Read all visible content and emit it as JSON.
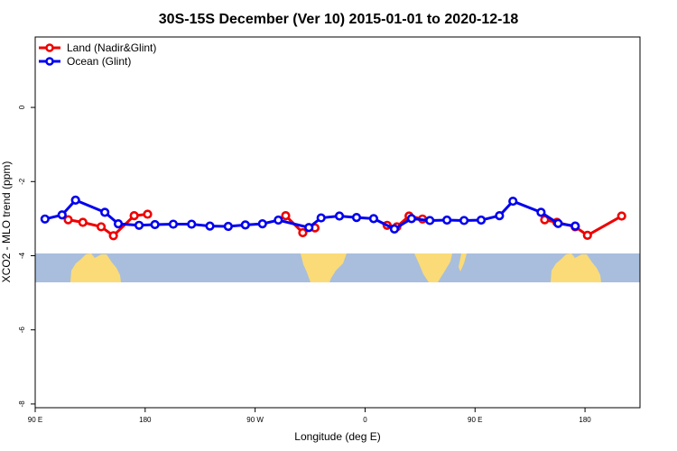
{
  "chart_data": {
    "type": "line",
    "title": "30S-15S December (Ver 10)   2015-01-01 to 2020-12-18",
    "xlabel": "Longitude (deg E)",
    "ylabel": "XCO2 - MLO trend (ppm)",
    "xlim": [
      90,
      585
    ],
    "ylim": [
      -8.1,
      1.9
    ],
    "x_ticks": [
      {
        "value": 90,
        "label": "90 E"
      },
      {
        "value": 180,
        "label": "180"
      },
      {
        "value": 270,
        "label": "90 W"
      },
      {
        "value": 360,
        "label": "0"
      },
      {
        "value": 450,
        "label": "90 E"
      },
      {
        "value": 540,
        "label": "180"
      }
    ],
    "y_ticks": [
      {
        "value": 0,
        "label": "0"
      },
      {
        "value": -2,
        "label": "-2"
      },
      {
        "value": -4,
        "label": "-4"
      },
      {
        "value": -6,
        "label": "-6"
      },
      {
        "value": -8,
        "label": "-8"
      }
    ],
    "legend": {
      "position": "top-left"
    },
    "series": [
      {
        "name": "Land (Nadir&Glint)",
        "color": "#ee0000",
        "segments": [
          [
            [
              117,
              -3.03
            ],
            [
              129,
              -3.1
            ],
            [
              144,
              -3.22
            ],
            [
              154,
              -3.46
            ],
            [
              171,
              -2.92
            ],
            [
              182,
              -2.88
            ]
          ],
          [
            [
              295,
              -2.92
            ],
            [
              309,
              -3.38
            ],
            [
              319,
              -3.25
            ]
          ],
          [
            [
              378,
              -3.18
            ],
            [
              386,
              -3.22
            ],
            [
              396,
              -2.93
            ],
            [
              407,
              -3.01
            ]
          ],
          [
            [
              507,
              -3.03
            ],
            [
              517,
              -3.1
            ],
            [
              532,
              -3.22
            ],
            [
              542,
              -3.45
            ],
            [
              570,
              -2.93
            ]
          ]
        ]
      },
      {
        "name": "Ocean (Glint)",
        "color": "#0000ee",
        "segments": [
          [
            [
              98,
              -3.01
            ],
            [
              112,
              -2.9
            ],
            [
              123,
              -2.5
            ],
            [
              147,
              -2.83
            ],
            [
              158,
              -3.14
            ],
            [
              175,
              -3.18
            ],
            [
              188,
              -3.16
            ],
            [
              203,
              -3.15
            ],
            [
              218,
              -3.15
            ],
            [
              233,
              -3.2
            ],
            [
              248,
              -3.21
            ],
            [
              262,
              -3.17
            ],
            [
              276,
              -3.14
            ],
            [
              289,
              -3.04
            ],
            [
              314,
              -3.24
            ],
            [
              324,
              -2.98
            ],
            [
              339,
              -2.93
            ],
            [
              353,
              -2.97
            ],
            [
              367,
              -3.0
            ],
            [
              384,
              -3.28
            ],
            [
              398,
              -3.0
            ],
            [
              413,
              -3.05
            ],
            [
              427,
              -3.04
            ],
            [
              441,
              -3.05
            ],
            [
              455,
              -3.04
            ],
            [
              470,
              -2.92
            ],
            [
              481,
              -2.53
            ],
            [
              504,
              -2.83
            ],
            [
              518,
              -3.13
            ],
            [
              532,
              -3.2
            ]
          ]
        ]
      }
    ]
  }
}
